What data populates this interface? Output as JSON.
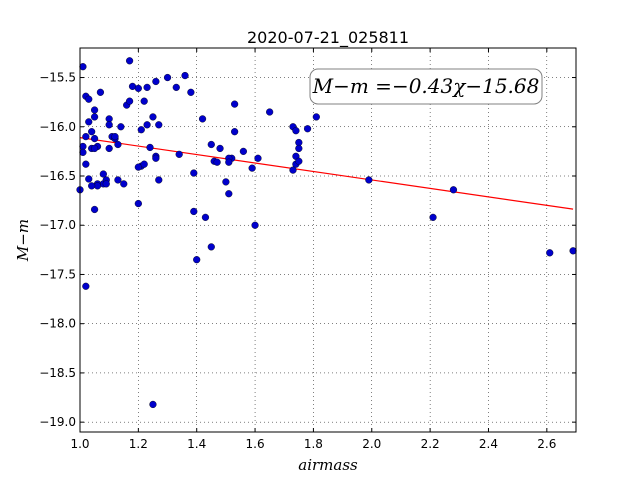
{
  "chart_data": {
    "type": "scatter",
    "title": "2020-07-21_025811",
    "xlabel": "airmass",
    "ylabel": "M−m",
    "xlim": [
      1.0,
      2.7
    ],
    "ylim": [
      -19.1,
      -15.2
    ],
    "x_ticks": [
      1.0,
      1.2,
      1.4,
      1.6,
      1.8,
      2.0,
      2.2,
      2.4,
      2.6
    ],
    "y_ticks": [
      -15.5,
      -16.0,
      -16.5,
      -17.0,
      -17.5,
      -18.0,
      -18.5,
      -19.0
    ],
    "x_tick_labels": [
      "1.0",
      "1.2",
      "1.4",
      "1.6",
      "1.8",
      "2.0",
      "2.2",
      "2.4",
      "2.6"
    ],
    "y_tick_labels": [
      "−15.5",
      "−16.0",
      "−16.5",
      "−17.0",
      "−17.5",
      "−18.0",
      "−18.5",
      "−19.0"
    ],
    "grid": true,
    "annotation": "M−m =−0.43χ−15.68",
    "fit": {
      "slope": -0.43,
      "intercept": -15.68,
      "x_range": [
        1.0,
        2.69
      ],
      "color": "#ff0000"
    },
    "marker_color": "#0000cc",
    "x": [
      1.01,
      1.02,
      1.03,
      1.03,
      1.02,
      1.01,
      1.01,
      1.0,
      1.02,
      1.05,
      1.05,
      1.04,
      1.05,
      1.06,
      1.04,
      1.03,
      1.05,
      1.08,
      1.09,
      1.1,
      1.1,
      1.11,
      1.12,
      1.13,
      1.14,
      1.15,
      1.16,
      1.17,
      1.18,
      1.2,
      1.21,
      1.21,
      1.22,
      1.23,
      1.23,
      1.24,
      1.25,
      1.26,
      1.27,
      1.26,
      1.26,
      1.27,
      1.2,
      1.22,
      1.2,
      1.17,
      1.13,
      1.12,
      1.1,
      1.09,
      1.08,
      1.07,
      1.06,
      1.06,
      1.05,
      1.04,
      1.02,
      1.3,
      1.33,
      1.34,
      1.36,
      1.38,
      1.39,
      1.39,
      1.4,
      1.42,
      1.43,
      1.45,
      1.45,
      1.46,
      1.47,
      1.48,
      1.5,
      1.51,
      1.52,
      1.53,
      1.53,
      1.51,
      1.51,
      1.56,
      1.59,
      1.6,
      1.61,
      1.65,
      1.73,
      1.74,
      1.74,
      1.75,
      1.75,
      1.74,
      1.75,
      1.73,
      1.78,
      1.81,
      1.99,
      2.21,
      2.28,
      2.61,
      2.69,
      1.25
    ],
    "y": [
      -15.39,
      -15.69,
      -15.72,
      -15.95,
      -16.1,
      -16.2,
      -16.26,
      -16.64,
      -16.38,
      -15.83,
      -15.9,
      -16.05,
      -16.12,
      -16.2,
      -16.22,
      -16.53,
      -16.84,
      -16.58,
      -16.54,
      -15.92,
      -15.98,
      -16.1,
      -16.12,
      -16.54,
      -16.0,
      -16.58,
      -15.78,
      -15.33,
      -15.59,
      -16.78,
      -16.4,
      -16.03,
      -15.74,
      -15.98,
      -15.6,
      -16.21,
      -15.9,
      -16.3,
      -16.54,
      -16.32,
      -15.54,
      -15.98,
      -16.41,
      -16.38,
      -15.61,
      -15.74,
      -16.18,
      -16.1,
      -16.22,
      -16.58,
      -16.48,
      -15.65,
      -16.58,
      -16.6,
      -16.22,
      -16.6,
      -17.62,
      -15.5,
      -15.6,
      -16.28,
      -15.48,
      -15.65,
      -16.47,
      -16.86,
      -17.35,
      -15.92,
      -16.92,
      -17.22,
      -16.18,
      -16.35,
      -16.36,
      -16.22,
      -16.56,
      -16.68,
      -16.32,
      -16.05,
      -15.77,
      -16.32,
      -16.36,
      -16.25,
      -16.42,
      -17.0,
      -16.32,
      -15.85,
      -16.0,
      -16.38,
      -16.04,
      -16.16,
      -16.22,
      -16.3,
      -16.35,
      -16.44,
      -16.02,
      -15.9,
      -16.54,
      -16.92,
      -16.64,
      -17.28,
      -17.26,
      -18.82
    ]
  }
}
